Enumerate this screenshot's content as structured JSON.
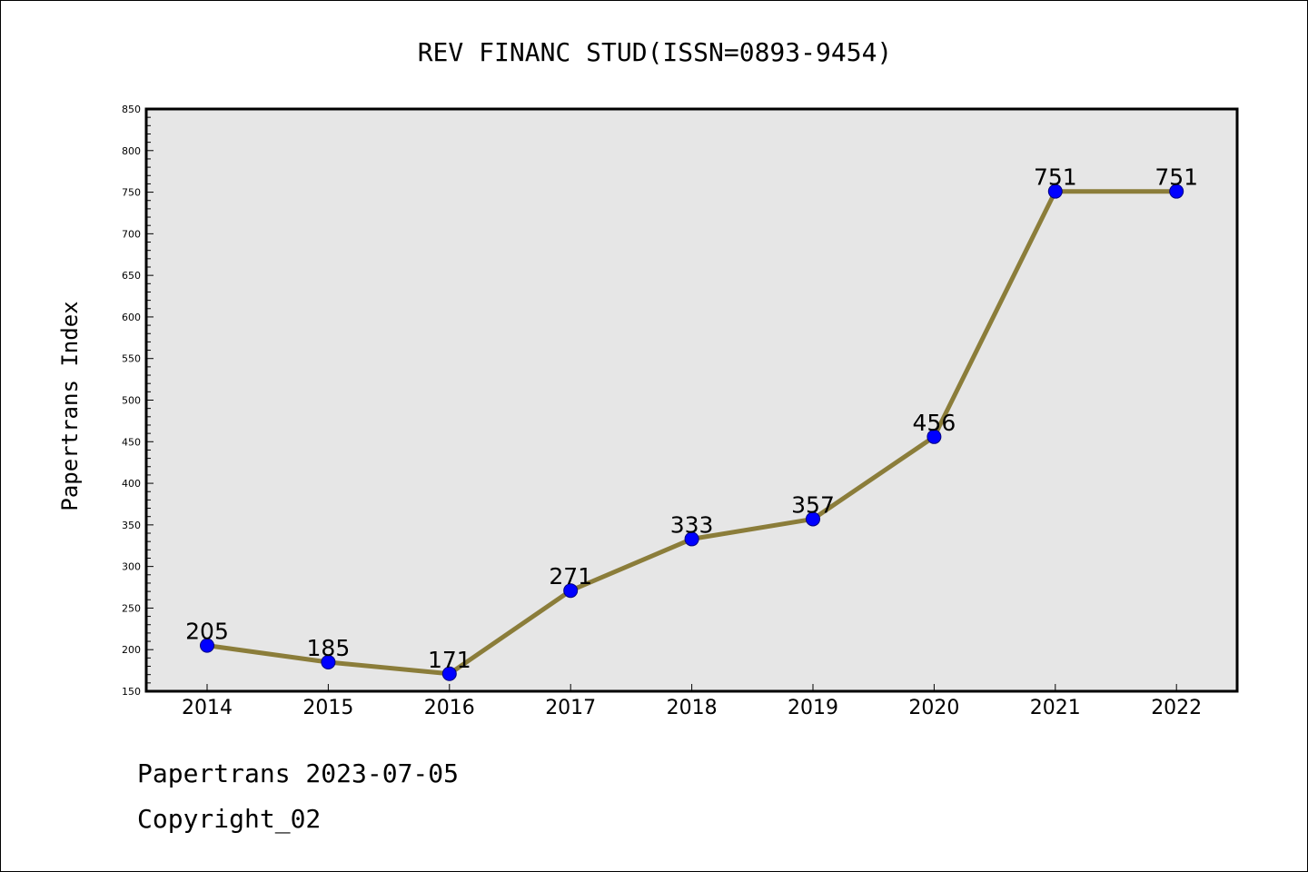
{
  "chart_data": {
    "type": "line",
    "title": "REV FINANC STUD(ISSN=0893-9454)",
    "xlabel": "",
    "ylabel": "Papertrans Index",
    "categories": [
      "2014",
      "2015",
      "2016",
      "2017",
      "2018",
      "2019",
      "2020",
      "2021",
      "2022"
    ],
    "series": [
      {
        "values": [
          205,
          185,
          171,
          271,
          333,
          357,
          456,
          751,
          751
        ]
      }
    ],
    "data_labels": [
      "205",
      "185",
      "171",
      "271",
      "333",
      "357",
      "456",
      "751",
      "751"
    ],
    "ylim": [
      150,
      850
    ],
    "yticks": [
      150,
      200,
      250,
      300,
      350,
      400,
      450,
      500,
      550,
      600,
      650,
      700,
      750,
      800,
      850
    ],
    "ytick_labels": [
      "150",
      "200",
      "250",
      "300",
      "350",
      "400",
      "450",
      "500",
      "550",
      "600",
      "650",
      "700",
      "750",
      "800",
      "850"
    ],
    "grid": false,
    "legend": "none",
    "colors": {
      "line": "#8b7d3a",
      "marker": "#0000ff",
      "marker_edge": "#000080",
      "plot_background": "#e6e6e6"
    }
  },
  "footer": {
    "line1": "Papertrans 2023-07-05",
    "line2": "Copyright_02"
  }
}
